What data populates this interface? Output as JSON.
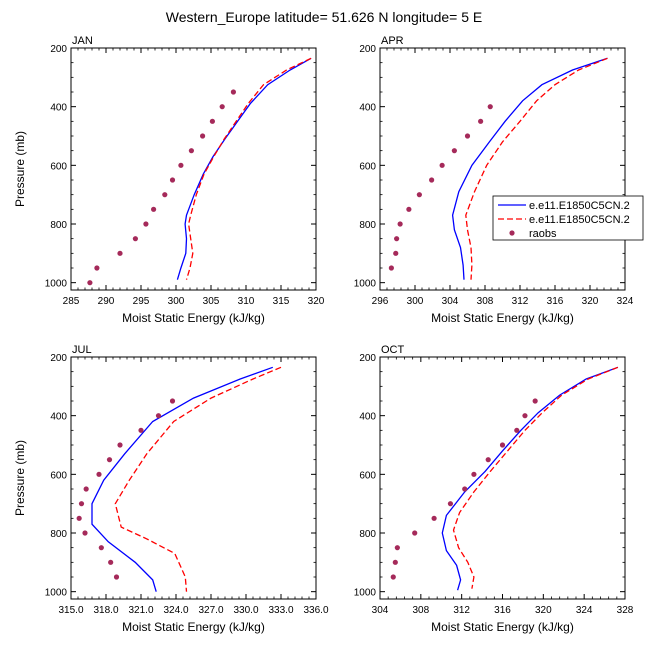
{
  "title": "Western_Europe  latitude= 51.626 N longitude= 5 E",
  "legend": {
    "entries": [
      {
        "label": "e.e11.E1850C5CN.2",
        "color": "#0000ff",
        "style": "solid"
      },
      {
        "label": "e.e11.E1850C5CN.2",
        "color": "#ff0000",
        "style": "dashed"
      },
      {
        "label": "raobs",
        "color": "#a52a5a",
        "style": "marker"
      }
    ]
  },
  "chart_data": [
    {
      "type": "line",
      "panel": "JAN",
      "xlabel": "Moist Static Energy (kJ/kg)",
      "ylabel": "Pressure (mb)",
      "xlim": [
        285,
        320
      ],
      "ylim": [
        1025,
        200
      ],
      "xticks": [
        "285",
        "290",
        "295",
        "300",
        "305",
        "310",
        "315",
        "320"
      ],
      "xtick_values": [
        285,
        290,
        295,
        300,
        305,
        310,
        315,
        320
      ],
      "yticks": [
        "200",
        "400",
        "600",
        "800",
        "1000"
      ],
      "ytick_values": [
        200,
        400,
        600,
        800,
        1000
      ],
      "series": [
        {
          "name": "e.e11.E1850C5CN.2",
          "color": "#0000ff",
          "style": "solid",
          "points": [
            [
              319.3,
              235
            ],
            [
              316.3,
              275
            ],
            [
              313.1,
              325
            ],
            [
              310.6,
              390
            ],
            [
              308.8,
              450
            ],
            [
              307.0,
              510
            ],
            [
              305.3,
              570
            ],
            [
              303.9,
              630
            ],
            [
              302.6,
              700
            ],
            [
              301.5,
              770
            ],
            [
              301.3,
              800
            ],
            [
              301.5,
              850
            ],
            [
              301.4,
              900
            ],
            [
              300.7,
              950
            ],
            [
              300.2,
              990
            ]
          ]
        },
        {
          "name": "e.e11.E1850C5CN.2",
          "color": "#ff0000",
          "style": "dashed",
          "points": [
            [
              319.3,
              235
            ],
            [
              315.8,
              275
            ],
            [
              312.5,
              325
            ],
            [
              310.3,
              390
            ],
            [
              308.6,
              450
            ],
            [
              306.9,
              510
            ],
            [
              305.4,
              570
            ],
            [
              304.0,
              630
            ],
            [
              302.9,
              700
            ],
            [
              302.1,
              770
            ],
            [
              301.8,
              800
            ],
            [
              302.1,
              850
            ],
            [
              302.4,
              900
            ],
            [
              302.0,
              950
            ],
            [
              301.5,
              990
            ]
          ]
        },
        {
          "name": "raobs",
          "color": "#a52a5a",
          "style": "marker",
          "points": [
            [
              308.2,
              350
            ],
            [
              306.6,
              400
            ],
            [
              305.2,
              450
            ],
            [
              303.8,
              500
            ],
            [
              302.2,
              550
            ],
            [
              300.7,
              600
            ],
            [
              299.5,
              650
            ],
            [
              298.4,
              700
            ],
            [
              296.8,
              750
            ],
            [
              295.7,
              800
            ],
            [
              294.2,
              850
            ],
            [
              292.0,
              900
            ],
            [
              288.7,
              950
            ],
            [
              287.7,
              1000
            ]
          ]
        }
      ]
    },
    {
      "type": "line",
      "panel": "APR",
      "xlabel": "Moist Static Energy (kJ/kg)",
      "ylabel": "",
      "xlim": [
        296,
        324
      ],
      "ylim": [
        1025,
        200
      ],
      "xticks": [
        "296",
        "300",
        "304",
        "308",
        "312",
        "316",
        "320",
        "324"
      ],
      "xtick_values": [
        296,
        300,
        304,
        308,
        312,
        316,
        320,
        324
      ],
      "yticks": [
        "200",
        "400",
        "600",
        "800",
        "1000"
      ],
      "ytick_values": [
        200,
        400,
        600,
        800,
        1000
      ],
      "series": [
        {
          "name": "e.e11.E1850C5CN.2",
          "color": "#0000ff",
          "style": "solid",
          "points": [
            [
              322.0,
              235
            ],
            [
              318.0,
              275
            ],
            [
              314.5,
              325
            ],
            [
              312.3,
              380
            ],
            [
              310.3,
              450
            ],
            [
              308.5,
              520
            ],
            [
              306.5,
              600
            ],
            [
              305.0,
              690
            ],
            [
              304.3,
              770
            ],
            [
              304.5,
              820
            ],
            [
              305.2,
              880
            ],
            [
              305.5,
              940
            ],
            [
              305.6,
              990
            ]
          ]
        },
        {
          "name": "e.e11.E1850C5CN.2",
          "color": "#ff0000",
          "style": "dashed",
          "points": [
            [
              322.0,
              235
            ],
            [
              318.7,
              275
            ],
            [
              316.0,
              325
            ],
            [
              313.9,
              380
            ],
            [
              312.0,
              450
            ],
            [
              310.0,
              520
            ],
            [
              308.2,
              600
            ],
            [
              306.8,
              690
            ],
            [
              305.8,
              770
            ],
            [
              306.0,
              820
            ],
            [
              306.4,
              880
            ],
            [
              306.5,
              940
            ],
            [
              306.4,
              990
            ]
          ]
        },
        {
          "name": "raobs",
          "color": "#a52a5a",
          "style": "marker",
          "points": [
            [
              308.6,
              400
            ],
            [
              307.5,
              450
            ],
            [
              306.0,
              500
            ],
            [
              304.5,
              550
            ],
            [
              303.1,
              600
            ],
            [
              301.9,
              650
            ],
            [
              300.5,
              700
            ],
            [
              299.3,
              750
            ],
            [
              298.3,
              800
            ],
            [
              297.9,
              850
            ],
            [
              297.8,
              900
            ],
            [
              297.3,
              950
            ]
          ]
        }
      ]
    },
    {
      "type": "line",
      "panel": "JUL",
      "xlabel": "Moist Static Energy (kJ/kg)",
      "ylabel": "Pressure (mb)",
      "xlim": [
        315,
        336
      ],
      "ylim": [
        1025,
        200
      ],
      "xticks": [
        "315.0",
        "318.0",
        "321.0",
        "324.0",
        "327.0",
        "330.0",
        "333.0",
        "336.0"
      ],
      "xtick_values": [
        315,
        318,
        321,
        324,
        327,
        330,
        333,
        336
      ],
      "yticks": [
        "200",
        "400",
        "600",
        "800",
        "1000"
      ],
      "ytick_values": [
        200,
        400,
        600,
        800,
        1000
      ],
      "series": [
        {
          "name": "e.e11.E1850C5CN.2",
          "color": "#0000ff",
          "style": "solid",
          "points": [
            [
              332.3,
              235
            ],
            [
              329.5,
              275
            ],
            [
              325.5,
              340
            ],
            [
              322.0,
              420
            ],
            [
              319.6,
              530
            ],
            [
              317.8,
              620
            ],
            [
              316.8,
              700
            ],
            [
              316.8,
              770
            ],
            [
              318.2,
              830
            ],
            [
              320.5,
              900
            ],
            [
              322.0,
              960
            ],
            [
              322.3,
              1000
            ]
          ]
        },
        {
          "name": "e.e11.E1850C5CN.2",
          "color": "#ff0000",
          "style": "dashed",
          "points": [
            [
              333.0,
              235
            ],
            [
              330.6,
              275
            ],
            [
              327.0,
              340
            ],
            [
              323.8,
              420
            ],
            [
              321.5,
              530
            ],
            [
              320.0,
              620
            ],
            [
              318.8,
              700
            ],
            [
              319.3,
              780
            ],
            [
              321.5,
              820
            ],
            [
              323.9,
              870
            ],
            [
              324.8,
              950
            ],
            [
              324.9,
              1000
            ]
          ]
        },
        {
          "name": "raobs",
          "color": "#a52a5a",
          "style": "marker",
          "points": [
            [
              323.7,
              350
            ],
            [
              322.5,
              400
            ],
            [
              321.0,
              450
            ],
            [
              319.2,
              500
            ],
            [
              318.3,
              550
            ],
            [
              317.4,
              600
            ],
            [
              316.3,
              650
            ],
            [
              315.9,
              700
            ],
            [
              315.7,
              750
            ],
            [
              316.2,
              800
            ],
            [
              317.6,
              850
            ],
            [
              318.4,
              900
            ],
            [
              318.9,
              950
            ]
          ]
        }
      ]
    },
    {
      "type": "line",
      "panel": "OCT",
      "xlabel": "Moist Static Energy (kJ/kg)",
      "ylabel": "",
      "xlim": [
        304,
        328
      ],
      "ylim": [
        1025,
        200
      ],
      "xticks": [
        "304",
        "308",
        "312",
        "316",
        "320",
        "324",
        "328"
      ],
      "xtick_values": [
        304,
        308,
        312,
        316,
        320,
        324,
        328
      ],
      "yticks": [
        "200",
        "400",
        "600",
        "800",
        "1000"
      ],
      "ytick_values": [
        200,
        400,
        600,
        800,
        1000
      ],
      "series": [
        {
          "name": "e.e11.E1850C5CN.2",
          "color": "#0000ff",
          "style": "solid",
          "points": [
            [
              327.3,
              235
            ],
            [
              324.2,
              275
            ],
            [
              321.6,
              330
            ],
            [
              319.5,
              390
            ],
            [
              317.8,
              450
            ],
            [
              316.0,
              520
            ],
            [
              314.3,
              590
            ],
            [
              312.3,
              660
            ],
            [
              310.5,
              740
            ],
            [
              310.1,
              800
            ],
            [
              310.5,
              860
            ],
            [
              311.5,
              910
            ],
            [
              311.9,
              960
            ],
            [
              311.6,
              995
            ]
          ]
        },
        {
          "name": "e.e11.E1850C5CN.2",
          "color": "#ff0000",
          "style": "dashed",
          "points": [
            [
              327.3,
              235
            ],
            [
              324.4,
              275
            ],
            [
              321.8,
              330
            ],
            [
              319.9,
              390
            ],
            [
              318.2,
              450
            ],
            [
              316.5,
              520
            ],
            [
              314.8,
              590
            ],
            [
              313.2,
              660
            ],
            [
              311.8,
              730
            ],
            [
              311.2,
              790
            ],
            [
              311.7,
              850
            ],
            [
              312.6,
              900
            ],
            [
              313.2,
              950
            ],
            [
              313.0,
              990
            ]
          ]
        },
        {
          "name": "raobs",
          "color": "#a52a5a",
          "style": "marker",
          "points": [
            [
              319.2,
              350
            ],
            [
              318.2,
              400
            ],
            [
              317.4,
              450
            ],
            [
              316.0,
              500
            ],
            [
              314.6,
              550
            ],
            [
              313.2,
              600
            ],
            [
              312.3,
              650
            ],
            [
              310.9,
              700
            ],
            [
              309.3,
              750
            ],
            [
              307.4,
              800
            ],
            [
              305.7,
              850
            ],
            [
              305.5,
              900
            ],
            [
              305.3,
              950
            ]
          ]
        }
      ]
    }
  ]
}
